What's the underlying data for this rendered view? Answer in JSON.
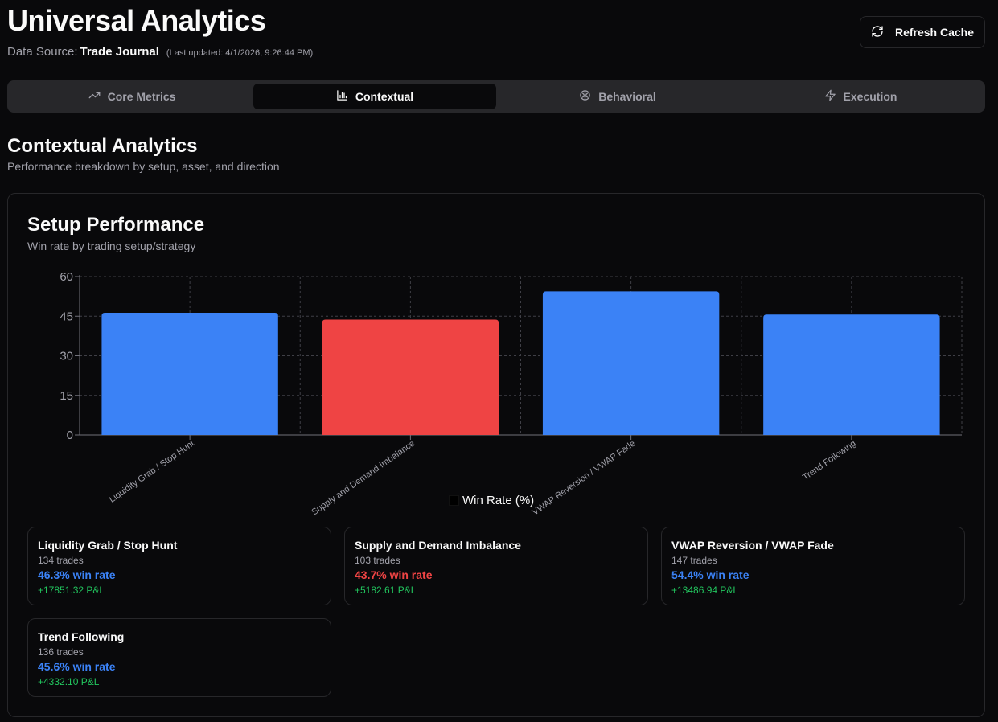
{
  "header": {
    "title": "Universal Analytics",
    "source_label": "Data Source:",
    "source_name": "Trade Journal",
    "last_updated": "(Last updated: 4/1/2026, 9:26:44 PM)",
    "refresh_label": "Refresh Cache"
  },
  "tabs": [
    {
      "label": "Core Metrics",
      "icon": "trending-up-icon",
      "active": false
    },
    {
      "label": "Contextual",
      "icon": "bar-chart-icon",
      "active": true
    },
    {
      "label": "Behavioral",
      "icon": "brain-icon",
      "active": false
    },
    {
      "label": "Execution",
      "icon": "zap-icon",
      "active": false
    }
  ],
  "section": {
    "title": "Contextual Analytics",
    "subtitle": "Performance breakdown by setup, asset, and direction"
  },
  "card": {
    "title": "Setup Performance",
    "subtitle": "Win rate by trading setup/strategy"
  },
  "colors": {
    "positive_bar": "#3b82f6",
    "negative_bar": "#ef4444",
    "pnl_positive": "#22c55e"
  },
  "chart_data": {
    "type": "bar",
    "categories": [
      "Liquidity Grab / Stop Hunt",
      "Supply and Demand Imbalance",
      "VWAP Reversion / VWAP Fade",
      "Trend Following"
    ],
    "series": [
      {
        "name": "Win Rate (%)",
        "values": [
          46.3,
          43.7,
          54.4,
          45.6
        ]
      }
    ],
    "bar_colors": [
      "#3b82f6",
      "#ef4444",
      "#3b82f6",
      "#3b82f6"
    ],
    "ylim": [
      0,
      60
    ],
    "yticks": [
      0,
      15,
      30,
      45,
      60
    ],
    "grid": true,
    "legend": "bottom-center"
  },
  "setups": [
    {
      "name": "Liquidity Grab / Stop Hunt",
      "trades": "134 trades",
      "win_rate": "46.3% win rate",
      "rate_color": "#3b82f6",
      "pnl": "+17851.32 P&L"
    },
    {
      "name": "Supply and Demand Imbalance",
      "trades": "103 trades",
      "win_rate": "43.7% win rate",
      "rate_color": "#ef4444",
      "pnl": "+5182.61 P&L"
    },
    {
      "name": "VWAP Reversion / VWAP Fade",
      "trades": "147 trades",
      "win_rate": "54.4% win rate",
      "rate_color": "#3b82f6",
      "pnl": "+13486.94 P&L"
    },
    {
      "name": "Trend Following",
      "trades": "136 trades",
      "win_rate": "45.6% win rate",
      "rate_color": "#3b82f6",
      "pnl": "+4332.10 P&L"
    }
  ]
}
